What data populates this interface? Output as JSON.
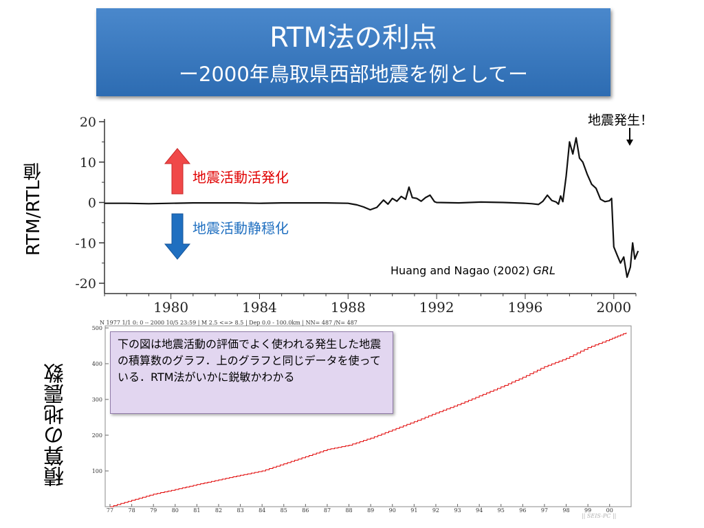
{
  "title": {
    "line1": "RTM法の利点",
    "line2": "ー2000年鳥取県西部地震を例としてー"
  },
  "annotations": {
    "earthquake": "地震発生！",
    "activation": "地震活動活発化",
    "quiescence": "地震活動静穏化",
    "citation_authors": "Huang and Nagao (2002) ",
    "citation_journal": "GRL",
    "note": "下の図は地震活動の評価でよく使われる発生した地震の積算数のグラフ．上のグラフと同じデータを使っている．RTM法がいかに鋭敏かわかる",
    "watermark": "|| SEIS-PC ||"
  },
  "colors": {
    "title_bg": "#3778c2",
    "activation": "#e00000",
    "quiescence": "#1f6fc0",
    "arrow_up": "#f04848",
    "arrow_down": "#1f6fc0",
    "rtm_line": "#111111",
    "cumulative_line": "#e00000",
    "note_bg": "#e2d6f0"
  },
  "chart_data": [
    {
      "type": "line",
      "ylabel": "RTM/RTL値",
      "xlim": [
        1977,
        2001
      ],
      "ylim": [
        -20,
        20
      ],
      "xticks": [
        1980,
        1984,
        1988,
        1992,
        1996,
        2000
      ],
      "xtick_labels": [
        "1980",
        "1984",
        "1988",
        "1992",
        "1996",
        "2000"
      ],
      "yticks": [
        20,
        10,
        0,
        -10,
        -20
      ],
      "ytick_labels": [
        "20",
        "10",
        "0",
        "-10",
        "-20"
      ],
      "grid": false,
      "series": [
        {
          "x": [
            1977.0,
            1978.0,
            1979.0,
            1980.0,
            1981.0,
            1982.0,
            1983.0,
            1984.0,
            1985.0,
            1986.0,
            1987.0,
            1988.0,
            1988.4,
            1988.7,
            1989.0,
            1989.3,
            1989.6,
            1989.8,
            1990.0,
            1990.2,
            1990.4,
            1990.6,
            1990.75,
            1990.9,
            1991.1,
            1991.3,
            1991.5,
            1991.7,
            1991.9,
            1992.0,
            1993.0,
            1994.0,
            1995.0,
            1996.0,
            1996.3,
            1996.6,
            1996.8,
            1997.0,
            1997.2,
            1997.4,
            1997.5,
            1997.6,
            1997.7,
            1997.85,
            1998.0,
            1998.15,
            1998.3,
            1998.45,
            1998.6,
            1998.8,
            1999.0,
            1999.2,
            1999.4,
            1999.6,
            1999.8,
            1999.9,
            2000.0,
            2000.15,
            2000.3,
            2000.45,
            2000.6,
            2000.75,
            2000.85,
            2000.95,
            2001.1
          ],
          "y": [
            -0.2,
            -0.2,
            -0.3,
            -0.2,
            -0.1,
            -0.1,
            -0.1,
            -0.2,
            -0.1,
            -0.1,
            -0.1,
            -0.2,
            -0.6,
            -1.1,
            -1.8,
            -1.2,
            0.6,
            -0.4,
            1.0,
            0.3,
            1.5,
            0.8,
            3.8,
            1.2,
            1.0,
            0.3,
            1.2,
            1.8,
            0.2,
            0.0,
            -0.1,
            0.1,
            0.0,
            -0.2,
            -0.3,
            -0.5,
            0.3,
            1.8,
            0.5,
            0.1,
            -0.4,
            1.6,
            0.2,
            6.5,
            15.0,
            12.0,
            16.0,
            11.0,
            10.0,
            7.0,
            4.5,
            3.5,
            0.8,
            0.2,
            0.4,
            1.0,
            -11.0,
            -13.0,
            -15.0,
            -13.5,
            -18.5,
            -16.0,
            -10.0,
            -14.0,
            -12.0
          ]
        }
      ]
    },
    {
      "type": "line",
      "header": "N   1977 1/1 0: 0 -- 2000 10/5 23:59  | M 2.5 <=> 8.5  | Dep 0.0 - 100.0km | NN= 487 /N= 487",
      "ylabel": "積算の地震数",
      "xlim": [
        1977,
        2000.8
      ],
      "ylim": [
        0,
        500
      ],
      "xticks": [
        1977,
        1978,
        1979,
        1980,
        1981,
        1982,
        1983,
        1984,
        1985,
        1986,
        1987,
        1988,
        1989,
        1990,
        1991,
        1992,
        1993,
        1994,
        1995,
        1996,
        1997,
        1998,
        1999,
        2000
      ],
      "xtick_labels": [
        "77",
        "78",
        "79",
        "80",
        "81",
        "82",
        "83",
        "84",
        "85",
        "86",
        "87",
        "88",
        "89",
        "90",
        "91",
        "92",
        "93",
        "94",
        "95",
        "96",
        "97",
        "98",
        "99",
        "00"
      ],
      "yticks": [
        100,
        200,
        300,
        400,
        500
      ],
      "ytick_labels": [
        "100",
        "200",
        "300",
        "400",
        "500"
      ],
      "grid": false,
      "series": [
        {
          "x": [
            1977.0,
            1978.0,
            1979.0,
            1980.0,
            1981.0,
            1982.0,
            1983.0,
            1984.0,
            1985.0,
            1986.0,
            1987.0,
            1988.0,
            1989.0,
            1990.0,
            1991.0,
            1992.0,
            1993.0,
            1994.0,
            1995.0,
            1996.0,
            1997.0,
            1998.0,
            1999.0,
            2000.0,
            2000.76
          ],
          "y": [
            0,
            18,
            35,
            48,
            62,
            75,
            88,
            100,
            120,
            140,
            160,
            172,
            192,
            215,
            238,
            262,
            285,
            310,
            335,
            362,
            392,
            415,
            445,
            468,
            487
          ]
        }
      ]
    }
  ]
}
